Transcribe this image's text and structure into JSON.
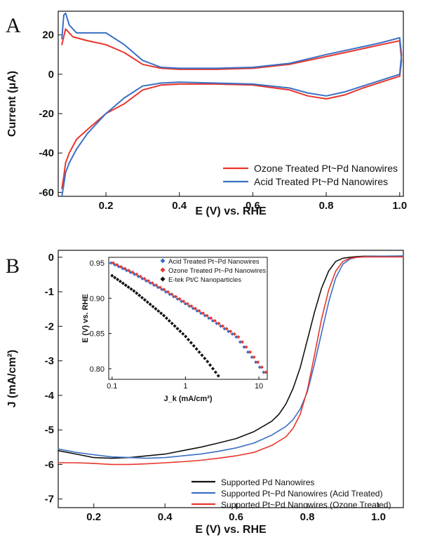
{
  "panels": {
    "a": {
      "letter": "A"
    },
    "b": {
      "letter": "B"
    }
  },
  "chart_data": [
    {
      "id": "A",
      "type": "line",
      "xlabel": "E (V) vs. RHE",
      "ylabel": "Current (μA)",
      "xlim": [
        0.07,
        1.01
      ],
      "ylim": [
        -62,
        32
      ],
      "xticks": [
        0.2,
        0.4,
        0.6,
        0.8,
        1.0
      ],
      "xtick_labels": [
        "0.2",
        "0.4",
        "0.6",
        "0.8",
        "1.0"
      ],
      "yticks": [
        20,
        0,
        -20,
        -40,
        -60
      ],
      "ytick_labels": [
        "20",
        "0",
        "-20",
        "-40",
        "-60"
      ],
      "legend": {
        "position": "bottom-right"
      },
      "series": [
        {
          "name": "Ozone Treated Pt~Pd Nanowires",
          "color": "#e8352b",
          "x": [
            0.08,
            0.09,
            0.11,
            0.15,
            0.2,
            0.25,
            0.3,
            0.35,
            0.4,
            0.5,
            0.6,
            0.7,
            0.8,
            0.9,
            0.95,
            1.0,
            1.005,
            1.0,
            0.95,
            0.9,
            0.85,
            0.8,
            0.75,
            0.7,
            0.6,
            0.5,
            0.4,
            0.35,
            0.3,
            0.25,
            0.2,
            0.15,
            0.12,
            0.1,
            0.09,
            0.085,
            0.08
          ],
          "y": [
            15,
            23,
            19,
            17,
            15,
            11,
            5,
            3,
            2.5,
            2.5,
            3,
            5,
            9,
            13,
            15,
            17,
            7,
            -1,
            -4,
            -7,
            -10.5,
            -12.5,
            -11,
            -8,
            -5.5,
            -5,
            -5,
            -5.5,
            -8,
            -15,
            -20,
            -28,
            -33,
            -40,
            -45,
            -52,
            -58
          ]
        },
        {
          "name": "Acid Treated Pt~Pd Nanowires",
          "color": "#3a6fc4",
          "x": [
            0.08,
            0.085,
            0.09,
            0.1,
            0.12,
            0.15,
            0.2,
            0.25,
            0.3,
            0.35,
            0.4,
            0.5,
            0.6,
            0.7,
            0.8,
            0.9,
            0.95,
            1.0,
            1.005,
            1.0,
            0.95,
            0.9,
            0.85,
            0.8,
            0.75,
            0.7,
            0.6,
            0.5,
            0.4,
            0.35,
            0.3,
            0.25,
            0.2,
            0.15,
            0.12,
            0.1,
            0.09,
            0.085,
            0.08
          ],
          "y": [
            18,
            30,
            31,
            25,
            21,
            21,
            21,
            15,
            7,
            3.5,
            3,
            3,
            3.5,
            5.5,
            10,
            14,
            16,
            18.5,
            10,
            0,
            -3,
            -6,
            -9,
            -11,
            -9.5,
            -7,
            -5,
            -4.5,
            -4,
            -4.5,
            -6,
            -12,
            -20,
            -30,
            -38,
            -45,
            -50,
            -56,
            -62
          ]
        }
      ]
    },
    {
      "id": "B",
      "type": "line",
      "xlabel": "E (V) vs. RHE",
      "ylabel": "J (mA/cm²)",
      "xlim": [
        0.1,
        1.07
      ],
      "ylim": [
        -7.25,
        0.2
      ],
      "xticks": [
        0.2,
        0.4,
        0.6,
        0.8,
        1.0
      ],
      "xtick_labels": [
        "0.2",
        "0.4",
        "0.6",
        "0.8",
        "1.0"
      ],
      "yticks": [
        0,
        -1,
        -2,
        -3,
        -4,
        -5,
        -6,
        -7
      ],
      "ytick_labels": [
        "0",
        "-1",
        "-2",
        "-3",
        "-4",
        "-5",
        "-6",
        "-7"
      ],
      "legend": {
        "position": "bottom-right"
      },
      "series": [
        {
          "name": "Supported Pd Nanowires",
          "color": "#111111",
          "x": [
            0.1,
            0.15,
            0.2,
            0.25,
            0.3,
            0.35,
            0.4,
            0.45,
            0.5,
            0.55,
            0.6,
            0.65,
            0.7,
            0.72,
            0.74,
            0.76,
            0.78,
            0.8,
            0.82,
            0.84,
            0.86,
            0.88,
            0.9,
            0.92,
            0.94,
            0.96,
            1.0,
            1.07
          ],
          "y": [
            -5.6,
            -5.7,
            -5.8,
            -5.82,
            -5.8,
            -5.75,
            -5.7,
            -5.6,
            -5.5,
            -5.38,
            -5.25,
            -5.05,
            -4.75,
            -4.55,
            -4.25,
            -3.8,
            -3.2,
            -2.4,
            -1.6,
            -0.9,
            -0.4,
            -0.12,
            -0.03,
            0.0,
            0.02,
            0.03,
            0.03,
            0.03
          ]
        },
        {
          "name": "Supported Pt~Pd Nanowires (Acid Treated)",
          "color": "#3a6fc4",
          "x": [
            0.1,
            0.15,
            0.2,
            0.25,
            0.3,
            0.35,
            0.4,
            0.45,
            0.5,
            0.55,
            0.6,
            0.65,
            0.7,
            0.74,
            0.76,
            0.78,
            0.8,
            0.82,
            0.84,
            0.86,
            0.88,
            0.9,
            0.92,
            0.94,
            0.96,
            1.0,
            1.07
          ],
          "y": [
            -5.55,
            -5.65,
            -5.72,
            -5.78,
            -5.8,
            -5.82,
            -5.8,
            -5.75,
            -5.7,
            -5.62,
            -5.52,
            -5.38,
            -5.15,
            -4.9,
            -4.7,
            -4.4,
            -3.9,
            -3.1,
            -2.2,
            -1.3,
            -0.6,
            -0.2,
            -0.05,
            0.0,
            0.02,
            0.03,
            0.04
          ]
        },
        {
          "name": "Supported Pt~Pd Nanowires (Ozone Treated)",
          "color": "#e8352b",
          "x": [
            0.1,
            0.15,
            0.2,
            0.25,
            0.3,
            0.35,
            0.4,
            0.45,
            0.5,
            0.55,
            0.6,
            0.65,
            0.7,
            0.74,
            0.76,
            0.78,
            0.8,
            0.82,
            0.84,
            0.86,
            0.88,
            0.9,
            0.92,
            0.94,
            0.96,
            1.0,
            1.07
          ],
          "y": [
            -5.95,
            -5.95,
            -5.97,
            -6.0,
            -6.0,
            -5.98,
            -5.95,
            -5.92,
            -5.88,
            -5.82,
            -5.75,
            -5.65,
            -5.45,
            -5.2,
            -4.95,
            -4.55,
            -3.85,
            -2.85,
            -1.8,
            -0.95,
            -0.4,
            -0.12,
            -0.03,
            0.0,
            0.01,
            0.01,
            0.01
          ]
        }
      ]
    },
    {
      "id": "B-inset",
      "type": "scatter",
      "xlabel": "J_k (mA/cm²)",
      "ylabel": "E (V) vs. RHE",
      "xscale": "log",
      "xlim": [
        0.09,
        13
      ],
      "ylim": [
        0.785,
        0.958
      ],
      "xticks": [
        0.1,
        1,
        10
      ],
      "xtick_labels": [
        "0.1",
        "1",
        "10"
      ],
      "yticks": [
        0.95,
        0.9,
        0.85,
        0.8
      ],
      "ytick_labels": [
        "0.95",
        "0.90",
        "0.85",
        "0.80"
      ],
      "legend": {
        "position": "top-left"
      },
      "series": [
        {
          "name": "Acid Treated Pt~Pd Nanowires",
          "color": "#3a6fc4",
          "x": [
            0.1,
            0.2,
            0.5,
            1,
            2,
            5,
            12
          ],
          "y": [
            0.95,
            0.935,
            0.912,
            0.893,
            0.874,
            0.846,
            0.795
          ]
        },
        {
          "name": "Ozone Treated Pt~Pd Nanowires",
          "color": "#e8352b",
          "x": [
            0.1,
            0.2,
            0.5,
            1,
            2,
            5,
            12
          ],
          "y": [
            0.95,
            0.935,
            0.912,
            0.893,
            0.874,
            0.846,
            0.795
          ]
        },
        {
          "name": "E-tek Pt/C Nanoparticles",
          "color": "#111111",
          "x": [
            0.1,
            0.2,
            0.5,
            1,
            2,
            2.8
          ],
          "y": [
            0.932,
            0.91,
            0.876,
            0.846,
            0.81,
            0.79
          ]
        }
      ]
    }
  ]
}
